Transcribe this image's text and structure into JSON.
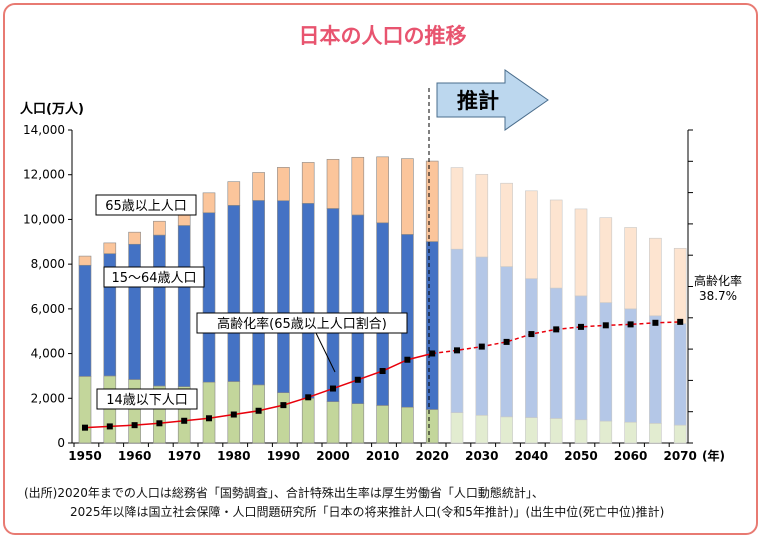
{
  "title": "日本の人口の推移",
  "colors": {
    "elderly": "#fbc59b",
    "working": "#4472c4",
    "children": "#c3d69b",
    "elderly_proj": "#fde4d0",
    "working_proj": "#b4c7e7",
    "children_proj": "#e2ecd0",
    "ratio_line": "#e8000b",
    "title": "#e8546f",
    "frame": "#e87a72"
  },
  "projection_label": "推計",
  "labels": {
    "elderly": "65歳以上人口",
    "working": "15～64歳人口",
    "children": "14歳以下人口",
    "ratio": "高齢化率(65歳以上人口割合)",
    "ratio_end_title": "高齢化率",
    "ratio_end_value": "38.7%"
  },
  "chart_data": {
    "type": "bar",
    "stacked": true,
    "ylabel": "人口(万人)",
    "xlabel": "(年)",
    "ylim": [
      0,
      14000
    ],
    "yticks": [
      0,
      2000,
      4000,
      6000,
      8000,
      10000,
      12000,
      14000
    ],
    "ytick_labels": [
      "0",
      "2,000",
      "4,000",
      "6,000",
      "8,000",
      "10,000",
      "12,000",
      "14,000"
    ],
    "x_tick_labels": [
      "1950",
      "1960",
      "1970",
      "1980",
      "1990",
      "2000",
      "2010",
      "2020",
      "2030",
      "2040",
      "2050",
      "2060",
      "2070"
    ],
    "years": [
      1950,
      1955,
      1960,
      1965,
      1970,
      1975,
      1980,
      1985,
      1990,
      1995,
      2000,
      2005,
      2010,
      2015,
      2020,
      2025,
      2030,
      2035,
      2040,
      2045,
      2050,
      2055,
      2060,
      2065,
      2070
    ],
    "projection_start": 2025,
    "series": [
      {
        "name": "14歳以下人口",
        "values": [
          2980,
          3000,
          2840,
          2550,
          2520,
          2720,
          2750,
          2600,
          2250,
          2000,
          1850,
          1760,
          1680,
          1600,
          1500,
          1360,
          1240,
          1170,
          1140,
          1100,
          1040,
          980,
          930,
          880,
          800
        ]
      },
      {
        "name": "15～64歳人口",
        "values": [
          4970,
          5470,
          6050,
          6750,
          7210,
          7580,
          7880,
          8250,
          8590,
          8720,
          8640,
          8440,
          8170,
          7730,
          7510,
          7310,
          7080,
          6720,
          6210,
          5830,
          5540,
          5300,
          5070,
          4810,
          4540
        ]
      },
      {
        "name": "65歳以上人口",
        "values": [
          410,
          480,
          540,
          620,
          740,
          890,
          1060,
          1250,
          1490,
          1830,
          2200,
          2580,
          2950,
          3390,
          3600,
          3650,
          3700,
          3730,
          3930,
          3940,
          3890,
          3800,
          3640,
          3470,
          3370
        ]
      }
    ],
    "ratio_series": {
      "name": "高齢化率(65歳以上人口割合)",
      "values": [
        4.9,
        5.3,
        5.7,
        6.3,
        7.1,
        7.9,
        9.1,
        10.3,
        12.1,
        14.6,
        17.4,
        20.2,
        23.0,
        26.6,
        28.6,
        29.6,
        30.8,
        32.3,
        34.8,
        36.3,
        37.1,
        37.6,
        37.9,
        38.4,
        38.7
      ]
    },
    "ratio_ylim": [
      0,
      100
    ]
  },
  "source": {
    "line1": "(出所)2020年までの人口は総務省「国勢調査」、合計特殊出生率は厚生労働省「人口動態統計」、",
    "line2": "2025年以降は国立社会保障・人口問題研究所「日本の将来推計人口(令和5年推計)」(出生中位(死亡中位)推計)"
  }
}
